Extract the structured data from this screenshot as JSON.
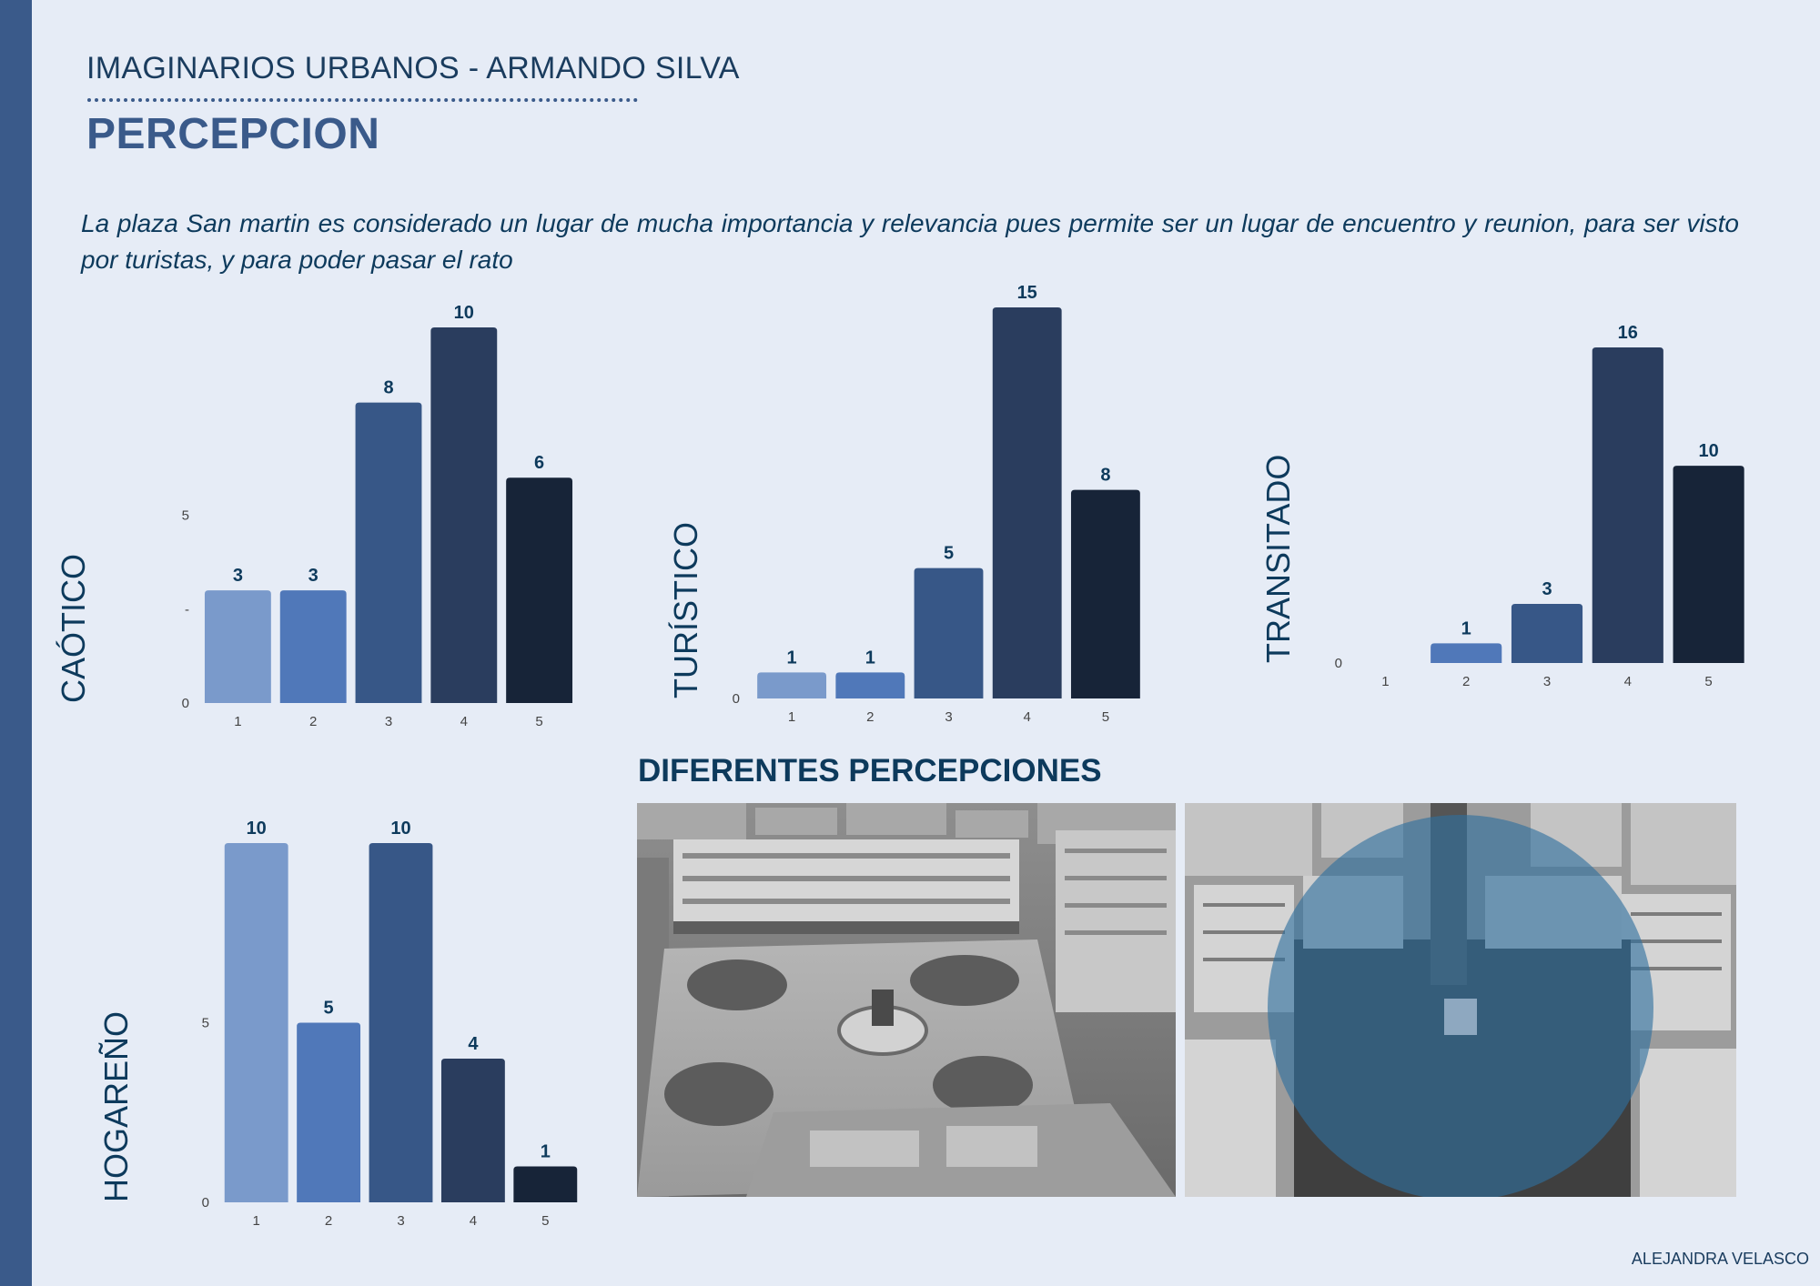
{
  "header": {
    "title": "IMAGINARIOS URBANOS - ARMANDO SILVA",
    "page_title": "PERCEPCION"
  },
  "intro_text": "La plaza San martin es considerado un lugar de mucha importancia y relevancia pues permite ser un lugar de encuentro y reunion, para ser visto por turistas, y para poder pasar el rato",
  "chart_data": [
    {
      "type": "bar",
      "title": "CAÓTICO",
      "categories": [
        "1",
        "2",
        "3",
        "4",
        "5"
      ],
      "values": [
        3,
        3,
        8,
        10,
        6
      ],
      "y_ticks": [
        {
          "value": 0,
          "label": "0"
        },
        {
          "value": 2.5,
          "label": "-"
        },
        {
          "value": 5,
          "label": "5"
        }
      ],
      "ylim": [
        0,
        10
      ],
      "grid": false
    },
    {
      "type": "bar",
      "title": "TURÍSTICO",
      "categories": [
        "1",
        "2",
        "3",
        "4",
        "5"
      ],
      "values": [
        1,
        1,
        5,
        15,
        8
      ],
      "y_ticks": [
        {
          "value": 0,
          "label": "0"
        }
      ],
      "ylim": [
        0,
        15
      ],
      "grid": false
    },
    {
      "type": "bar",
      "title": "TRANSITADO",
      "categories": [
        "1",
        "2",
        "3",
        "4",
        "5"
      ],
      "values": [
        null,
        1,
        3,
        16,
        10
      ],
      "y_ticks": [
        {
          "value": 0,
          "label": "0"
        }
      ],
      "ylim": [
        0,
        16
      ],
      "grid": false
    },
    {
      "type": "bar",
      "title": "HOGAREÑO",
      "categories": [
        "1",
        "2",
        "3",
        "4",
        "5"
      ],
      "values": [
        10,
        5,
        10,
        4,
        1
      ],
      "y_ticks": [
        {
          "value": 0,
          "label": "0"
        },
        {
          "value": 5,
          "label": "5"
        }
      ],
      "ylim": [
        0,
        10
      ],
      "grid": false
    }
  ],
  "bar_colors": [
    "#7a9acb",
    "#5078b9",
    "#375787",
    "#2a3d5e",
    "#172438"
  ],
  "colors": {
    "text_dark": "#0d3a5c",
    "accent": "#3a5a8a",
    "overlay_circle": "#2f6f9e"
  },
  "gallery": {
    "title": "DIFERENTES PERCEPCIONES"
  },
  "footer": {
    "author": "ALEJANDRA VELASCO"
  }
}
